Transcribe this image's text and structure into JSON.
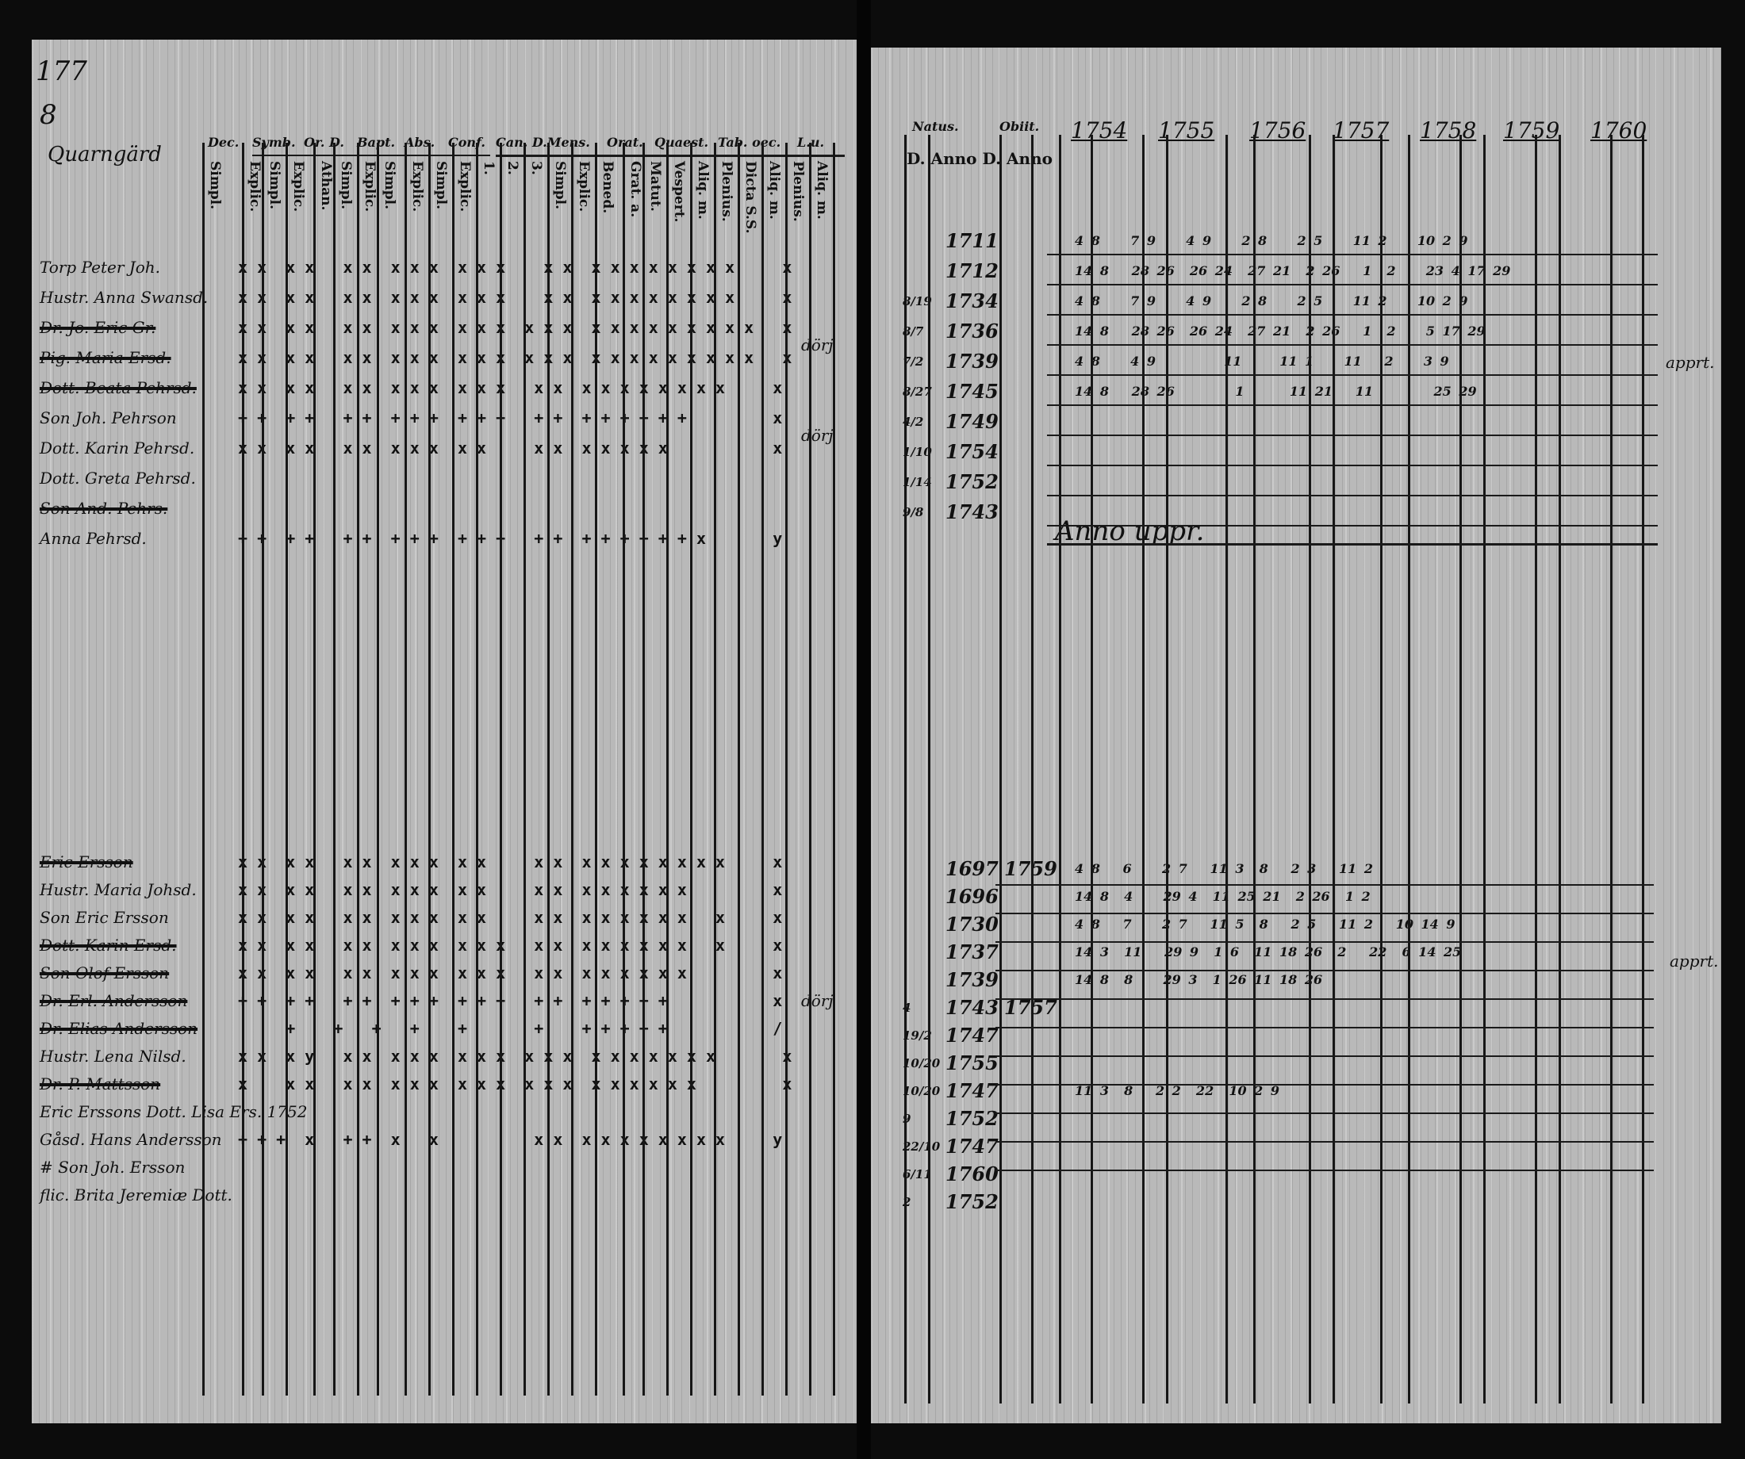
{
  "left_page": {
    "folio": "177",
    "farm_number": "8",
    "farm_name": "Quarngärd",
    "column_headers": [
      "Dec.",
      "Symb.",
      "Or. D.",
      "Bapt.",
      "Abs.",
      "Conf.",
      "Can. D.Mens.",
      "Orat.",
      "Quaest.",
      "Tab. oec.",
      "L.u."
    ],
    "sub_headers": [
      "Simpl.",
      "Explic.",
      "Simpl.",
      "Explic.",
      "Athan.",
      "Simpl.",
      "Explic.",
      "Simpl.",
      "Explic.",
      "Simpl.",
      "Explic.",
      "1.",
      "2.",
      "3.",
      "Simpl.",
      "Explic.",
      "Bened.",
      "Grat. a.",
      "Matut.",
      "Vespert.",
      "Aliq. m.",
      "Plenius.",
      "Dicta S.S.",
      "Aliq. m.",
      "Plenius.",
      "Aliq. m."
    ],
    "group1": [
      {
        "name": "Torp Peter Joh.",
        "struck": false,
        "marks": "x x  x x   x x  x x x  x x x    x x  x x x x x x x x     x"
      },
      {
        "name": "Hustr. Anna Swansd.",
        "struck": false,
        "marks": "x x  x x   x x  x x x  x x x    x x  x x x x x x x x     x"
      },
      {
        "name": "Dr. Jo. Eric Gr.",
        "struck": true,
        "marks": "x x  x x   x x  x x x  x x x  x x x  x x x x x x x x x   x"
      },
      {
        "name": "Pig. Maria Ersd.",
        "struck": true,
        "marks": "x x  x x   x x  x x x  x x x  x x x  x x x x x x x x x   x"
      },
      {
        "name": "Dott. Beata Pehrsd.",
        "struck": true,
        "marks": "x x  x x   x x  x x x  x x x   x x  x x x x x x x x     x"
      },
      {
        "name": "Son Joh. Pehrson",
        "struck": false,
        "marks": "+ +  + +   + +  + + +  + + +   + +  + + + + + +         x"
      },
      {
        "name": "Dott. Karin Pehrsd.",
        "struck": false,
        "marks": "x x  x x   x x  x x x  x x     x x  x x x x x           x"
      },
      {
        "name": "Dott. Greta Pehrsd.",
        "struck": false,
        "marks": ""
      },
      {
        "name": "Son And. Pehrs.",
        "struck": true,
        "marks": ""
      },
      {
        "name": "Anna Pehrsd.",
        "struck": false,
        "marks": "+ +  + +   + +  + + +  + + +   + +  + + + + + + x       y"
      }
    ],
    "group2": [
      {
        "name": "Eric Ersson",
        "struck": true,
        "marks": "x x  x x   x x  x x x  x x     x x  x x x x x x x x     x"
      },
      {
        "name": "Hustr. Maria Johsd.",
        "struck": false,
        "marks": "x x  x x   x x  x x x  x x     x x  x x x x x x         x"
      },
      {
        "name": "Son Eric Ersson",
        "struck": false,
        "marks": "x x  x x   x x  x x x  x x     x x  x x x x x x   x     x"
      },
      {
        "name": "Dott. Karin Ersd.",
        "struck": true,
        "marks": "x x  x x   x x  x x x  x x x   x x  x x x x x x   x     x"
      },
      {
        "name": "Son Olof Ersson",
        "struck": true,
        "marks": "x x  x x   x x  x x x  x x x   x x  x x x x x x         x"
      },
      {
        "name": "Dr. Erl. Andersson",
        "struck": true,
        "marks": "+ +  + +   + +  + + +  + + +   + +  + + + + +           x"
      },
      {
        "name": "Dr. Elias Andersson",
        "struck": true,
        "marks": "     +    +   +   +    +       +    + + + + +           /"
      },
      {
        "name": "Hustr. Lena Nilsd.",
        "struck": false,
        "marks": "x x  x y   x x  x x x  x x x  x x x  x x x x x x x       x"
      },
      {
        "name": "Dr. P. Mattsson",
        "struck": true,
        "marks": "x    x x   x x  x x x  x x x  x x x  x x x x x x         x"
      },
      {
        "name": "Eric Erssons Dott. Lisa Ers. 1752",
        "struck": false,
        "marks": ""
      },
      {
        "name": "Gåsd. Hans Andersson",
        "struck": false,
        "marks": "+ + +  x   + +  x   x          x x  x x x x x x x x     y"
      },
      {
        "name": "# Son Joh. Ersson",
        "struck": false,
        "marks": ""
      },
      {
        "name": "flic. Brita Jeremiæ Dott.",
        "struck": false,
        "marks": ""
      }
    ],
    "margin_notes": [
      "dörj",
      "dörj",
      "dörj"
    ]
  },
  "right_page": {
    "header_natus": "Natus.",
    "header_obiit": "Obiit.",
    "header_anno": "D. Anno D. Anno",
    "year_headers": [
      "1754",
      "1755",
      "1756",
      "1757",
      "1758",
      "1759",
      "1760"
    ],
    "group1": [
      {
        "date": "",
        "born": "1711",
        "died": "",
        "exams": "4 8    7 9    4 9    2 8    2 5    11 2    10 2 9"
      },
      {
        "date": "",
        "born": "1712",
        "died": "",
        "exams": "14 8   28 26  26 24  27 21  2 26   1  2    23 4 17 29"
      },
      {
        "date": "8/19",
        "born": "1734",
        "died": "",
        "exams": "4 8    7 9    4 9    2 8    2 5    11 2    10 2 9"
      },
      {
        "date": "8/7",
        "born": "1736",
        "died": "",
        "exams": "14 8   28 26  26 24  27 21  2 26   1  2    5 17 29"
      },
      {
        "date": "7/2",
        "born": "1739",
        "died": "",
        "exams": "4 8    4 9         11     11 1    11   2    3 9"
      },
      {
        "date": "8/27",
        "born": "1745",
        "died": "",
        "exams": "14 8   28 26        1      11 21   11        25 29"
      },
      {
        "date": "4/2",
        "born": "1749",
        "died": "",
        "exams": ""
      },
      {
        "date": "1/10",
        "born": "1754",
        "died": "",
        "exams": ""
      },
      {
        "date": "1/14",
        "born": "1752",
        "died": "",
        "exams": ""
      },
      {
        "date": "9/8",
        "born": "1743",
        "died": "",
        "exams": ""
      }
    ],
    "group1_note": "Anno uppr.",
    "group2": [
      {
        "date": "",
        "born": "1697",
        "died": "1759",
        "exams": "4 8   6    2 7   11 3  8   2 3   11 2"
      },
      {
        "date": "",
        "born": "1696",
        "died": "",
        "exams": "14 8  4    29 4  11 25 21  2 26  1 2"
      },
      {
        "date": "",
        "born": "1730",
        "died": "",
        "exams": "4 8   7    2 7   11 5  8   2 5   11 2   10 14 9"
      },
      {
        "date": "",
        "born": "1737",
        "died": "",
        "exams": "14 3  11   29 9  1 6  11 18 26  2   22  6 14 25"
      },
      {
        "date": "",
        "born": "1739",
        "died": "",
        "exams": "14 8  8    29 3  1 26 11 18 26"
      },
      {
        "date": "4",
        "born": "1743",
        "died": "1757",
        "exams": ""
      },
      {
        "date": "19/2",
        "born": "1747",
        "died": "",
        "exams": ""
      },
      {
        "date": "10/20",
        "born": "1755",
        "died": "",
        "exams": ""
      },
      {
        "date": "10/20",
        "born": "1747",
        "died": "",
        "exams": "11 3  8   2 2  22  10 2 9"
      },
      {
        "date": "9",
        "born": "1752",
        "died": "",
        "exams": ""
      },
      {
        "date": "22/10",
        "born": "1747",
        "died": "",
        "exams": ""
      },
      {
        "date": "6/11",
        "born": "1760",
        "died": "",
        "exams": ""
      },
      {
        "date": "2",
        "born": "1752",
        "died": "",
        "exams": ""
      }
    ],
    "margin_notes": [
      "apprt.",
      "apprt."
    ]
  }
}
